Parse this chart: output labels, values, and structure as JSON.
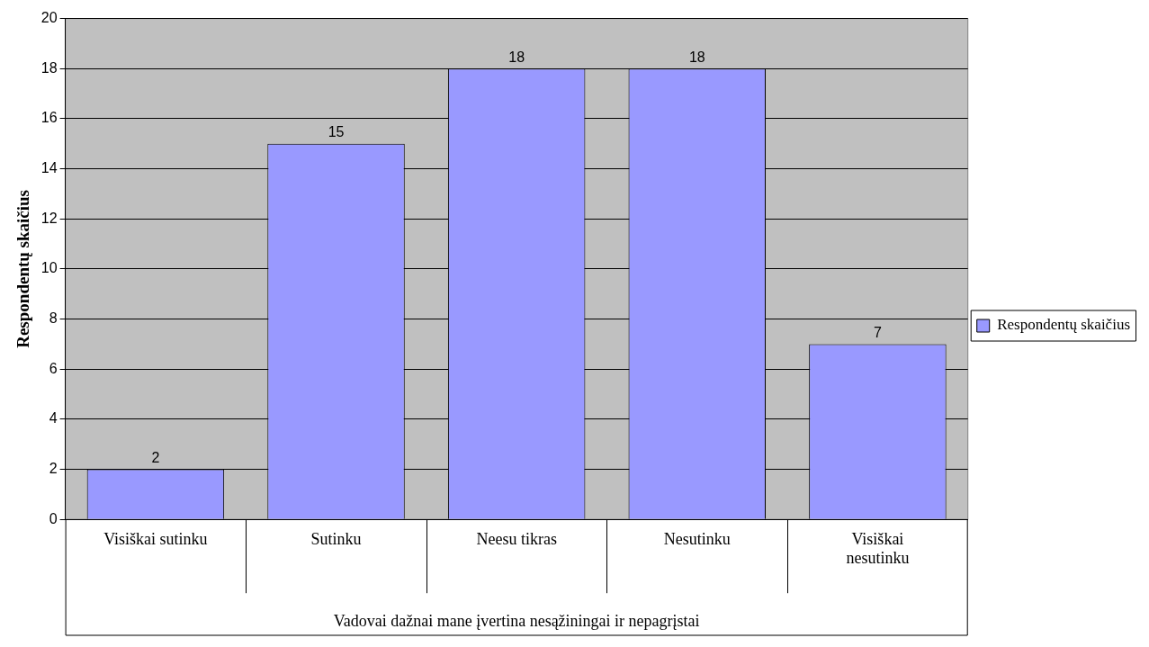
{
  "chart_data": {
    "type": "bar",
    "xlabel": "Vadovai dažnai mane įvertina nesąžiningai ir nepagrįstai",
    "ylabel": "Respondentų skaičius",
    "categories": [
      "Visiškai sutinku",
      "Sutinku",
      "Neesu tikras",
      "Nesutinku",
      "Visiškai nesutinku"
    ],
    "series": [
      {
        "name": "Respondentų skaičius",
        "color": "#9999ff",
        "values": [
          2,
          15,
          18,
          18,
          7
        ]
      }
    ],
    "ylim": [
      0,
      20
    ],
    "yticks": [
      0,
      2,
      4,
      6,
      8,
      10,
      12,
      14,
      16,
      18,
      20
    ],
    "grid": "y",
    "legend": "right",
    "data_labels": true
  }
}
